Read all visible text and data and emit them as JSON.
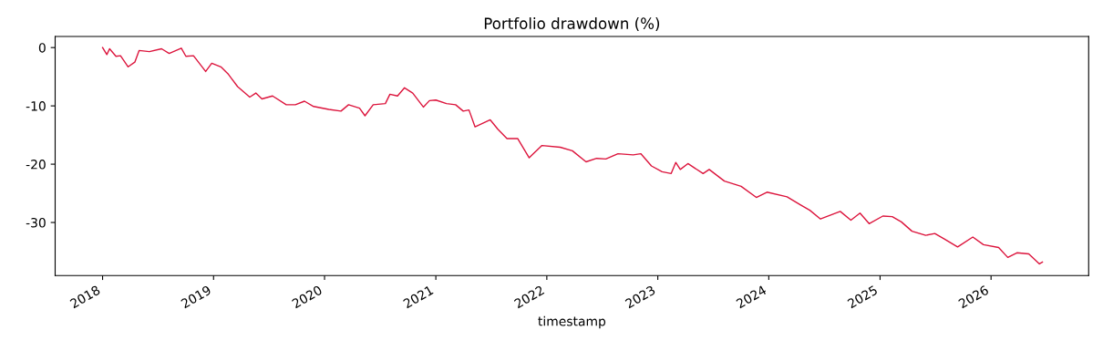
{
  "chart_data": {
    "type": "line",
    "title": "Portfolio drawdown (%)",
    "xlabel": "timestamp",
    "x": [
      "2018-01-01",
      "2018-01-15",
      "2018-01-24",
      "2018-02-14",
      "2018-03-01",
      "2018-03-26",
      "2018-04-17",
      "2018-05-01",
      "2018-06-04",
      "2018-07-14",
      "2018-08-08",
      "2018-09-17",
      "2018-10-02",
      "2018-10-27",
      "2018-12-06",
      "2018-12-26",
      "2019-01-25",
      "2019-02-19",
      "2019-03-21",
      "2019-04-30",
      "2019-05-20",
      "2019-06-09",
      "2019-07-14",
      "2019-08-28",
      "2019-09-27",
      "2019-10-27",
      "2019-11-26",
      "2020-01-15",
      "2020-02-24",
      "2020-03-20",
      "2020-04-25",
      "2020-05-13",
      "2020-06-09",
      "2020-07-19",
      "2020-08-03",
      "2020-08-28",
      "2020-09-20",
      "2020-10-17",
      "2020-11-21",
      "2020-12-11",
      "2021-01-01",
      "2021-02-05",
      "2021-03-07",
      "2021-04-01",
      "2021-04-20",
      "2021-05-10",
      "2021-06-29",
      "2021-07-24",
      "2021-08-23",
      "2021-09-27",
      "2021-11-04",
      "2021-12-16",
      "2022-02-14",
      "2022-03-26",
      "2022-05-10",
      "2022-06-14",
      "2022-07-14",
      "2022-08-23",
      "2022-10-12",
      "2022-11-06",
      "2022-12-11",
      "2023-01-15",
      "2023-02-14",
      "2023-03-01",
      "2023-03-16",
      "2023-04-10",
      "2023-05-30",
      "2023-06-19",
      "2023-08-08",
      "2023-10-02",
      "2023-11-21",
      "2023-12-26",
      "2024-03-01",
      "2024-04-15",
      "2024-05-15",
      "2024-06-19",
      "2024-08-23",
      "2024-09-27",
      "2024-10-27",
      "2024-11-26",
      "2025-01-10",
      "2025-02-10",
      "2025-03-12",
      "2025-04-16",
      "2025-05-31",
      "2025-06-30",
      "2025-07-30",
      "2025-09-13",
      "2025-11-02",
      "2025-12-07",
      "2026-01-26",
      "2026-02-25",
      "2026-03-27",
      "2026-05-05",
      "2026-06-09",
      "2026-06-19"
    ],
    "series": [
      {
        "color": "#dc143c",
        "values": [
          0,
          -1.2,
          -0.2,
          -1.5,
          -1.4,
          -3.3,
          -2.5,
          -0.5,
          -0.7,
          -0.2,
          -1.0,
          -0.1,
          -1.5,
          -1.4,
          -4.1,
          -2.7,
          -3.3,
          -4.6,
          -6.7,
          -8.5,
          -7.8,
          -8.8,
          -8.3,
          -9.8,
          -9.8,
          -9.2,
          -10.1,
          -10.6,
          -10.9,
          -9.8,
          -10.4,
          -11.7,
          -9.8,
          -9.6,
          -8.0,
          -8.3,
          -6.9,
          -7.8,
          -10.2,
          -9.1,
          -9.0,
          -9.6,
          -9.8,
          -10.9,
          -10.7,
          -13.6,
          -12.4,
          -14.0,
          -15.6,
          -15.6,
          -18.9,
          -16.8,
          -17.1,
          -17.7,
          -19.6,
          -19.0,
          -19.1,
          -18.2,
          -18.4,
          -18.2,
          -20.3,
          -21.3,
          -21.6,
          -19.7,
          -20.9,
          -19.9,
          -21.6,
          -20.9,
          -22.9,
          -23.8,
          -25.7,
          -24.8,
          -25.6,
          -27.0,
          -27.9,
          -29.4,
          -28.1,
          -29.6,
          -28.4,
          -30.2,
          -28.9,
          -29.0,
          -29.9,
          -31.5,
          -32.2,
          -31.9,
          -32.8,
          -34.2,
          -32.5,
          -33.8,
          -34.3,
          -36.0,
          -35.2,
          -35.4,
          -37.1,
          -36.8
        ]
      }
    ],
    "xlim": [
      "2017-07-29",
      "2026-11-18"
    ],
    "xticks": [
      {
        "value": "2018-01-01",
        "label": "2018"
      },
      {
        "value": "2019-01-01",
        "label": "2019"
      },
      {
        "value": "2020-01-01",
        "label": "2020"
      },
      {
        "value": "2021-01-01",
        "label": "2021"
      },
      {
        "value": "2022-01-01",
        "label": "2022"
      },
      {
        "value": "2023-01-01",
        "label": "2023"
      },
      {
        "value": "2024-01-01",
        "label": "2024"
      },
      {
        "value": "2025-01-01",
        "label": "2025"
      },
      {
        "value": "2026-01-01",
        "label": "2026"
      }
    ],
    "ylim": [
      -39.1,
      1.9
    ],
    "yticks": [
      0,
      -10,
      -20,
      -30
    ],
    "grid": false,
    "legend": false
  }
}
